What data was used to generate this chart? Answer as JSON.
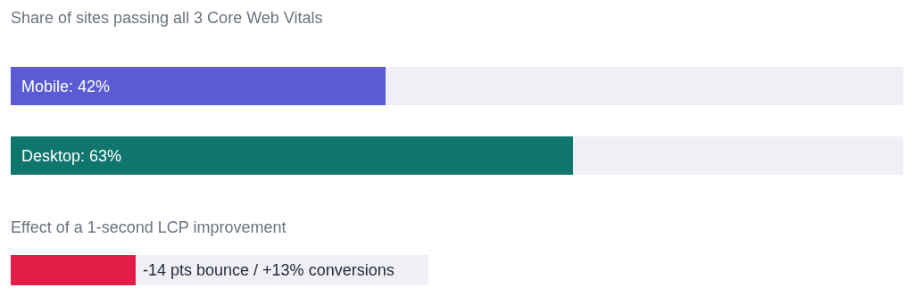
{
  "chart_data": [
    {
      "type": "bar",
      "orientation": "horizontal",
      "title": "Share of sites passing all 3 Core Web Vitals",
      "categories": [
        null,
        null
      ],
      "values": [
        42,
        63
      ],
      "colors": [
        "#5b5bd6",
        "#0f766e"
      ],
      "value_labels": [
        "Mobile: 42%",
        "Desktop: 63%"
      ],
      "xlim": [
        0,
        100
      ]
    },
    {
      "type": "other",
      "title": "Effect of a 1-second LCP improvement",
      "annotations": [
        "-14 pts bounce / +13% conversions"
      ]
    }
  ]
}
